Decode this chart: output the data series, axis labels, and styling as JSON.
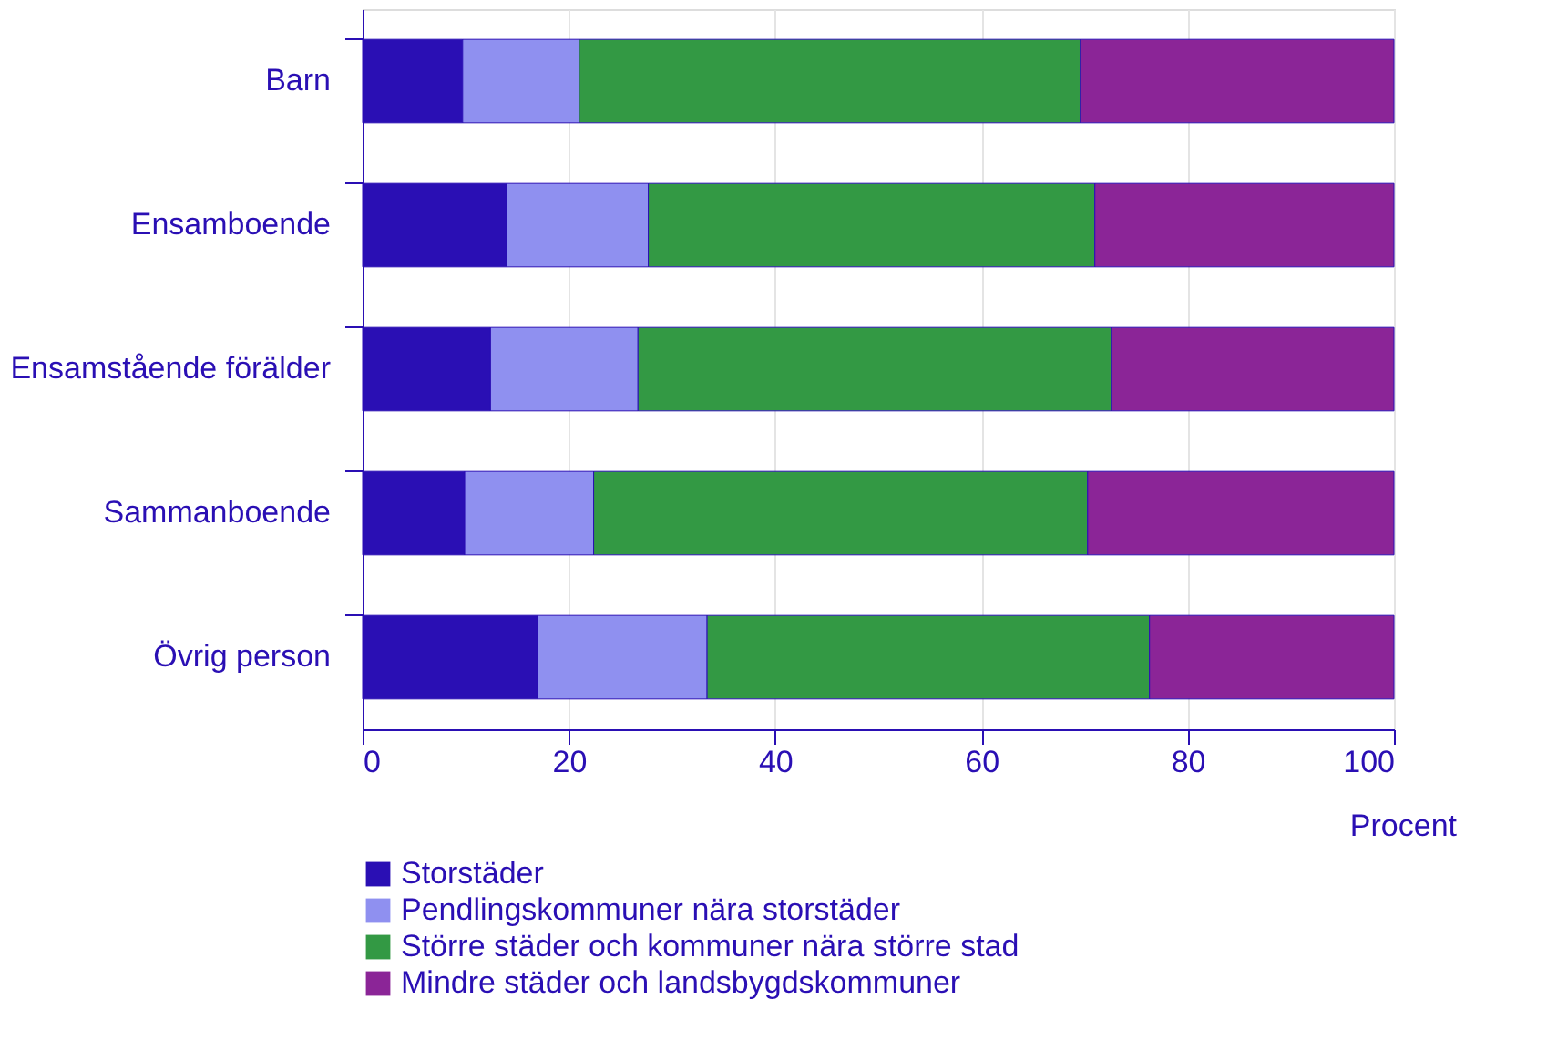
{
  "chart_data": {
    "type": "bar",
    "orientation": "horizontal",
    "stacked": true,
    "categories": [
      "Barn",
      "Ensamboende",
      "Ensamstående förälder",
      "Sammanboende",
      "Övrig person"
    ],
    "series": [
      {
        "name": "Storstäder",
        "color": "#2a0fb4",
        "values": [
          9.7,
          14.0,
          12.4,
          9.9,
          17.0
        ]
      },
      {
        "name": "Pendlingskommuner nära storstäder",
        "color": "#8f90f0",
        "values": [
          11.3,
          13.7,
          14.3,
          12.5,
          16.4
        ]
      },
      {
        "name": "Större städer och kommuner nära större stad",
        "color": "#339944",
        "values": [
          48.6,
          43.3,
          45.9,
          47.9,
          42.9
        ]
      },
      {
        "name": "Mindre städer och landsbygdskommuner",
        "color": "#8b2597",
        "values": [
          30.4,
          29.0,
          27.4,
          29.7,
          23.7
        ]
      }
    ],
    "xlabel": "Procent",
    "xlim": [
      0,
      100
    ],
    "xticks": [
      0,
      20,
      40,
      60,
      80,
      100
    ],
    "grid": "x",
    "legend": "bottom left"
  }
}
